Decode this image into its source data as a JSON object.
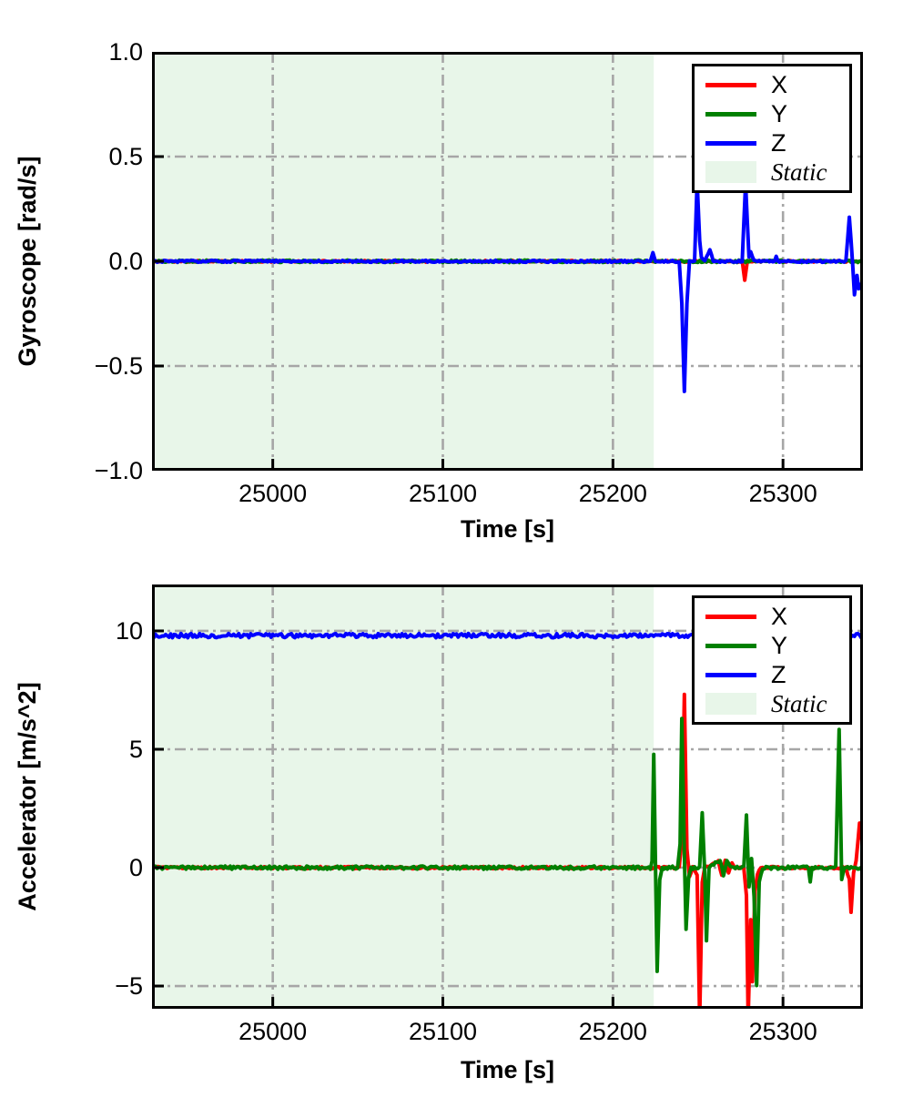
{
  "page": {
    "background": "#ffffff",
    "axes_color": "#000000"
  },
  "chart_data": [
    {
      "type": "line",
      "title": "",
      "xlabel": "Time [s]",
      "ylabel": "Gyroscope [rad/s]",
      "xlim": [
        24929,
        25347
      ],
      "ylim": [
        -1.0,
        1.0
      ],
      "xticks": [
        25000,
        25100,
        25200,
        25300
      ],
      "xtick_labels": [
        "25000",
        "25100",
        "25200",
        "25300"
      ],
      "yticks": [
        1.0,
        0.5,
        0.0,
        -0.5,
        -1.0
      ],
      "ytick_labels": [
        "1.0",
        "0.5",
        "0.0",
        "−0.5",
        "−1.0"
      ],
      "grid": {
        "on": true,
        "style": "dash-dot",
        "color": "#a6a6a6"
      },
      "static_region": {
        "label": "Static",
        "from": 24929,
        "to": 25224,
        "color": "#e8f6e9"
      },
      "legend": {
        "position": "top-right",
        "entries": [
          {
            "label": "X",
            "color": "#ff0000",
            "swatch": "line",
            "italic": false
          },
          {
            "label": "Y",
            "color": "#008000",
            "swatch": "line",
            "italic": false
          },
          {
            "label": "Z",
            "color": "#0000ff",
            "swatch": "line",
            "italic": false
          },
          {
            "label": "Static",
            "color": "#e8f6e9",
            "swatch": "patch",
            "italic": true
          }
        ]
      },
      "series": [
        {
          "name": "X",
          "color": "#ff0000",
          "noise": 0.004,
          "points": [
            [
              24929,
              0
            ],
            [
              25276,
              0
            ],
            [
              25277.5,
              -0.09
            ],
            [
              25279,
              0
            ],
            [
              25347,
              0
            ]
          ]
        },
        {
          "name": "Y",
          "color": "#008000",
          "noise": 0.006,
          "points": [
            [
              24929,
              0
            ],
            [
              25347,
              0
            ]
          ]
        },
        {
          "name": "Z",
          "color": "#0000ff",
          "noise": 0.005,
          "points": [
            [
              24929,
              0
            ],
            [
              25222,
              0
            ],
            [
              25223.5,
              0.04
            ],
            [
              25225,
              0
            ],
            [
              25239,
              0
            ],
            [
              25240.5,
              -0.2
            ],
            [
              25242,
              -0.62
            ],
            [
              25243.5,
              -0.2
            ],
            [
              25245,
              0
            ],
            [
              25248,
              0
            ],
            [
              25249.5,
              0.38
            ],
            [
              25251,
              0.1
            ],
            [
              25252,
              0.02
            ],
            [
              25254,
              0
            ],
            [
              25257,
              0.055
            ],
            [
              25259,
              0
            ],
            [
              25276,
              0
            ],
            [
              25278,
              0.37
            ],
            [
              25280,
              0.02
            ],
            [
              25281,
              0.045
            ],
            [
              25283,
              0
            ],
            [
              25295,
              0
            ],
            [
              25296,
              0.025
            ],
            [
              25297,
              0
            ],
            [
              25337,
              0
            ],
            [
              25339,
              0.21
            ],
            [
              25341,
              -0.02
            ],
            [
              25342,
              -0.16
            ],
            [
              25343.5,
              -0.07
            ],
            [
              25344.5,
              -0.13
            ],
            [
              25347,
              -0.1
            ]
          ]
        }
      ]
    },
    {
      "type": "line",
      "title": "",
      "xlabel": "Time [s]",
      "ylabel": "Accelerator [m/s^2]",
      "xlim": [
        24929,
        25347
      ],
      "ylim": [
        -5.96,
        11.96
      ],
      "xticks": [
        25000,
        25100,
        25200,
        25300
      ],
      "xtick_labels": [
        "25000",
        "25100",
        "25200",
        "25300"
      ],
      "yticks": [
        10,
        5,
        0,
        -5
      ],
      "ytick_labels": [
        "10",
        "5",
        "0",
        "−5"
      ],
      "grid": {
        "on": true,
        "style": "dash-dot",
        "color": "#a6a6a6"
      },
      "static_region": {
        "label": "Static",
        "from": 24929,
        "to": 25224,
        "color": "#e8f6e9"
      },
      "legend": {
        "position": "top-right",
        "entries": [
          {
            "label": "X",
            "color": "#ff0000",
            "swatch": "line",
            "italic": false
          },
          {
            "label": "Y",
            "color": "#008000",
            "swatch": "line",
            "italic": false
          },
          {
            "label": "Z",
            "color": "#0000ff",
            "swatch": "line",
            "italic": false
          },
          {
            "label": "Static",
            "color": "#e8f6e9",
            "swatch": "patch",
            "italic": true
          }
        ]
      },
      "series": [
        {
          "name": "X",
          "color": "#ff0000",
          "noise": 0.05,
          "points": [
            [
              24929,
              0
            ],
            [
              25239,
              0
            ],
            [
              25240.5,
              1.2
            ],
            [
              25242,
              7.3
            ],
            [
              25243.5,
              0.8
            ],
            [
              25245,
              -0.4
            ],
            [
              25247,
              0
            ],
            [
              25249.5,
              -0.3
            ],
            [
              25251,
              -6.4
            ],
            [
              25252.5,
              -0.6
            ],
            [
              25254,
              0
            ],
            [
              25262,
              0.25
            ],
            [
              25264,
              -0.3
            ],
            [
              25266,
              0.3
            ],
            [
              25268,
              -0.25
            ],
            [
              25270,
              0.2
            ],
            [
              25272,
              0
            ],
            [
              25277,
              0
            ],
            [
              25278.5,
              -1.2
            ],
            [
              25279.5,
              -6.4
            ],
            [
              25281,
              -2.2
            ],
            [
              25282,
              -4.8
            ],
            [
              25283.5,
              -1
            ],
            [
              25285,
              -0.3
            ],
            [
              25287,
              0
            ],
            [
              25337,
              0
            ],
            [
              25339,
              -0.5
            ],
            [
              25340,
              -1.9
            ],
            [
              25341.5,
              -0.2
            ],
            [
              25343,
              0.3
            ],
            [
              25345,
              1.9
            ],
            [
              25347,
              0.9
            ]
          ]
        },
        {
          "name": "Y",
          "color": "#008000",
          "noise": 0.07,
          "points": [
            [
              24929,
              0
            ],
            [
              25222,
              0
            ],
            [
              25223,
              0.3
            ],
            [
              25224,
              4.8
            ],
            [
              25225,
              0.2
            ],
            [
              25226,
              -4.4
            ],
            [
              25227.5,
              -0.5
            ],
            [
              25229,
              0
            ],
            [
              25238,
              0
            ],
            [
              25239.5,
              1
            ],
            [
              25240.5,
              6.3
            ],
            [
              25242,
              0.5
            ],
            [
              25243,
              -2.6
            ],
            [
              25244.5,
              -0.4
            ],
            [
              25246,
              0
            ],
            [
              25251,
              0
            ],
            [
              25252.5,
              2.3
            ],
            [
              25254,
              -0.3
            ],
            [
              25255,
              -3.1
            ],
            [
              25256.5,
              0
            ],
            [
              25263,
              0.35
            ],
            [
              25265,
              -0.35
            ],
            [
              25267,
              0.3
            ],
            [
              25269,
              0
            ],
            [
              25277,
              0
            ],
            [
              25278.5,
              2.2
            ],
            [
              25280,
              -0.8
            ],
            [
              25281.5,
              0.4
            ],
            [
              25283,
              -1.2
            ],
            [
              25284.5,
              -5.0
            ],
            [
              25286,
              -0.6
            ],
            [
              25288,
              0
            ],
            [
              25315,
              0
            ],
            [
              25316,
              -0.6
            ],
            [
              25317,
              0
            ],
            [
              25331,
              0
            ],
            [
              25333,
              5.9
            ],
            [
              25334.5,
              -0.5
            ],
            [
              25336,
              0
            ],
            [
              25347,
              0
            ]
          ]
        },
        {
          "name": "Z",
          "color": "#0000ff",
          "noise": 0.09,
          "points": [
            [
              24929,
              9.8
            ],
            [
              25347,
              9.8
            ]
          ]
        }
      ]
    }
  ]
}
